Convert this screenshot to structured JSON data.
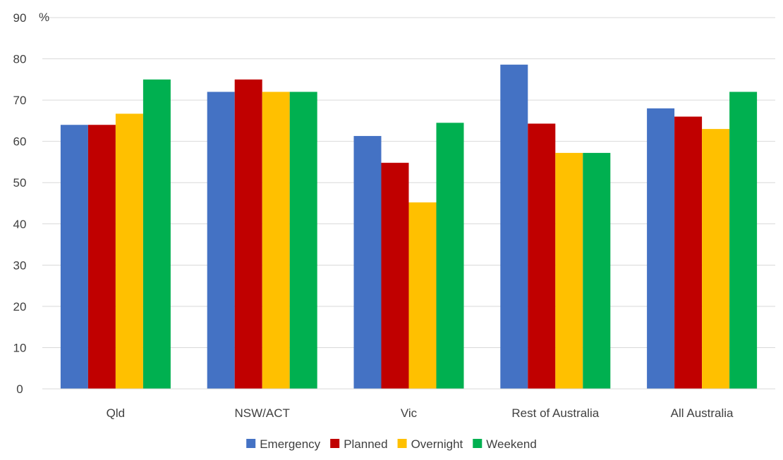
{
  "chart_data": {
    "type": "bar",
    "unit_label": "%",
    "categories": [
      "Qld",
      "NSW/ACT",
      "Vic",
      "Rest of Australia",
      "All Australia"
    ],
    "series": [
      {
        "name": "Emergency",
        "color": "#4472C4",
        "values": [
          64,
          72,
          61.3,
          78.6,
          68
        ]
      },
      {
        "name": "Planned",
        "color": "#C00000",
        "values": [
          64,
          75,
          54.8,
          64.3,
          66
        ]
      },
      {
        "name": "Overnight",
        "color": "#FFC000",
        "values": [
          66.7,
          72,
          45.2,
          57.2,
          63
        ]
      },
      {
        "name": "Weekend",
        "color": "#00B050",
        "values": [
          75,
          72,
          64.5,
          57.2,
          72
        ]
      }
    ],
    "ylim": [
      0,
      90
    ],
    "yticks": [
      0,
      10,
      20,
      30,
      40,
      50,
      60,
      70,
      80,
      90
    ],
    "grid": true,
    "legend_position": "bottom"
  }
}
